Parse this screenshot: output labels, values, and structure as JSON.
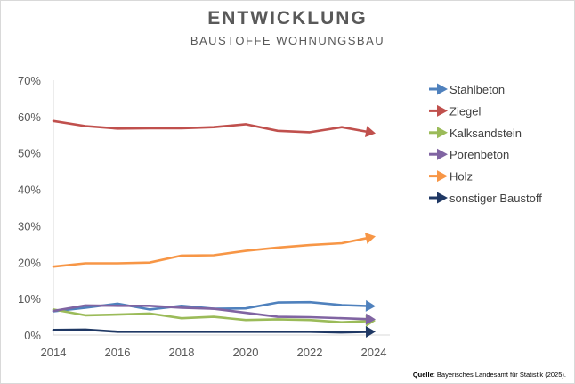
{
  "chart_data": {
    "type": "line",
    "title": "ENTWICKLUNG",
    "subtitle": "BAUSTOFFE WOHNUNGSBAU",
    "x": [
      2014,
      2015,
      2016,
      2017,
      2018,
      2019,
      2020,
      2021,
      2022,
      2023,
      2024
    ],
    "xticks": [
      2014,
      2016,
      2018,
      2020,
      2022,
      2024
    ],
    "xtick_labels": [
      "2014",
      "2016",
      "2018",
      "2020",
      "2022",
      "2024"
    ],
    "xlim": [
      2014,
      2024.5
    ],
    "ylim": [
      0,
      70
    ],
    "yticks": [
      0,
      10,
      20,
      30,
      40,
      50,
      60,
      70
    ],
    "ytick_labels": [
      "0%",
      "10%",
      "20%",
      "30%",
      "40%",
      "50%",
      "60%",
      "70%"
    ],
    "grid": false,
    "legend_position": "right",
    "series": [
      {
        "name": "Stahlbeton",
        "color": "#4F81BD",
        "values": [
          6.5,
          7.5,
          8.6,
          7.0,
          8.0,
          7.2,
          7.3,
          8.9,
          9.0,
          8.2,
          7.9
        ]
      },
      {
        "name": "Ziegel",
        "color": "#C0504D",
        "values": [
          58.8,
          57.4,
          56.7,
          56.8,
          56.8,
          57.1,
          57.9,
          56.1,
          55.7,
          57.1,
          55.5
        ]
      },
      {
        "name": "Kalksandstein",
        "color": "#9BBB59",
        "values": [
          7.0,
          5.4,
          5.6,
          5.9,
          4.6,
          5.0,
          4.1,
          4.3,
          4.1,
          3.5,
          3.9
        ]
      },
      {
        "name": "Porenbeton",
        "color": "#8064A2",
        "values": [
          6.6,
          8.1,
          8.0,
          8.0,
          7.5,
          7.2,
          6.1,
          5.0,
          4.9,
          4.6,
          4.3
        ]
      },
      {
        "name": "Holz",
        "color": "#F79646",
        "values": [
          18.8,
          19.7,
          19.7,
          19.9,
          21.8,
          21.9,
          23.1,
          24.0,
          24.7,
          25.2,
          27.0
        ]
      },
      {
        "name": "sonstiger Baustoff",
        "color": "#1F3864",
        "values": [
          1.4,
          1.5,
          0.9,
          0.9,
          0.9,
          0.9,
          0.9,
          0.9,
          0.9,
          0.7,
          0.9
        ]
      }
    ]
  },
  "source": {
    "label": "Quelle",
    "text": ": Bayerisches Landesamt für Statistik (2025)."
  }
}
